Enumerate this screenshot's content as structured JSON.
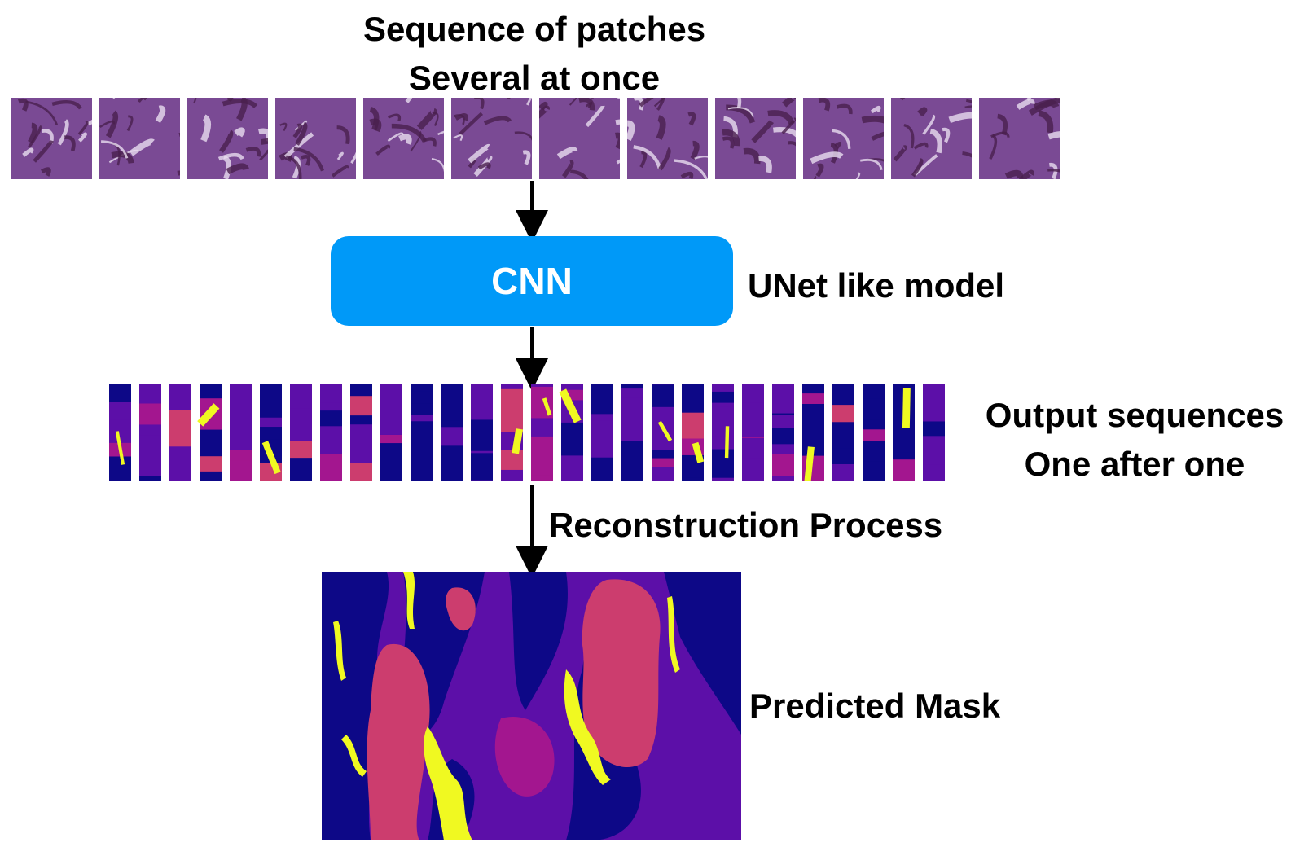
{
  "title": {
    "line1": "Sequence of patches",
    "line2": "Several at once"
  },
  "model": {
    "box_label": "CNN",
    "side_label": "UNet like model"
  },
  "outputs": {
    "line1": "Output sequences",
    "line2": "One after one"
  },
  "reconstruction": {
    "label": "Reconstruction Process"
  },
  "mask": {
    "label": "Predicted Mask"
  },
  "colors": {
    "cnn_box": "#0099f8",
    "patch_base": "#7a4a94",
    "patch_dark": "#4a1f4d",
    "patch_light": "#e8dcef",
    "mask_navy": "#0d0887",
    "mask_purple": "#5c0fa8",
    "mask_pink": "#cc3d6e",
    "mask_magenta": "#a3168f",
    "mask_yellow": "#f0f921",
    "arrow": "#000000"
  }
}
